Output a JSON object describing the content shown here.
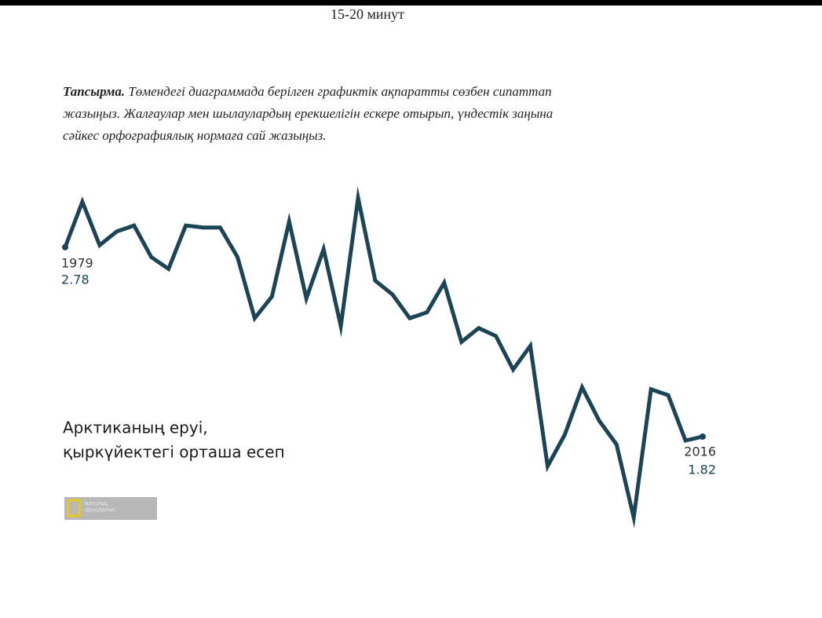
{
  "header": {
    "duration": "15-20 минут"
  },
  "task": {
    "label": "Тапсырма.",
    "lines": [
      "Төмендегі диаграммада берілген графиктік  ақпаратты сөзбен сипаттап",
      "жазыңыз. Жалғаулар мен шылаулардың ерекшелігін ескере отырып,  үндестік заңына",
      "сәйкес орфографиялық нормаға сай жазыңыз."
    ]
  },
  "logo": {
    "line1": "NATIONAL",
    "line2": "GEOGRAPHIC"
  },
  "chart_data": {
    "type": "line",
    "title_lines": [
      "Арктиканың еруі,",
      "қыркүйектегі орташа есеп"
    ],
    "color": "#1b4556",
    "x": [
      1979,
      1980,
      1981,
      1982,
      1983,
      1984,
      1985,
      1986,
      1987,
      1988,
      1989,
      1990,
      1991,
      1992,
      1993,
      1994,
      1995,
      1996,
      1997,
      1998,
      1999,
      2000,
      2001,
      2002,
      2003,
      2004,
      2005,
      2006,
      2007,
      2008,
      2009,
      2010,
      2011,
      2012,
      2013,
      2014,
      2015,
      2016
    ],
    "values": [
      2.78,
      3.01,
      2.79,
      2.86,
      2.89,
      2.73,
      2.67,
      2.89,
      2.88,
      2.88,
      2.73,
      2.42,
      2.53,
      2.91,
      2.52,
      2.77,
      2.38,
      3.03,
      2.61,
      2.54,
      2.42,
      2.45,
      2.6,
      2.3,
      2.37,
      2.33,
      2.16,
      2.28,
      1.67,
      1.83,
      2.07,
      1.9,
      1.78,
      1.41,
      2.06,
      2.03,
      1.8,
      1.82
    ]
  }
}
